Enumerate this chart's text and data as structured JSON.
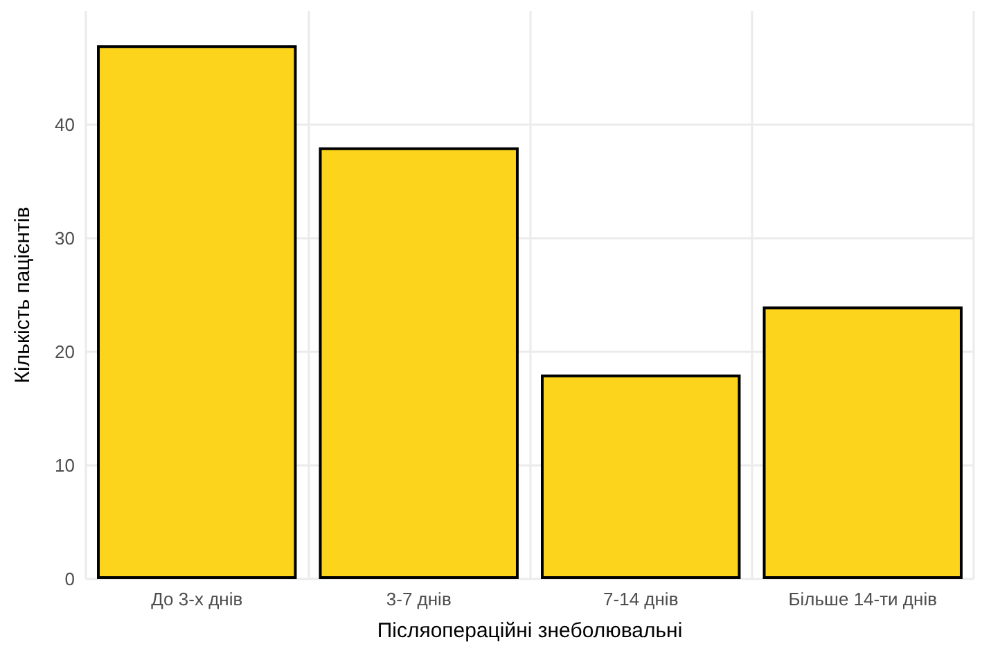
{
  "chart_data": {
    "type": "bar",
    "xlabel": "Післяопераційні знеболювальні",
    "ylabel": "Кількість пацієнтів",
    "categories": [
      "До 3-х днів",
      "3-7 днів",
      "7-14 днів",
      "Більше 14-ти днів"
    ],
    "values": [
      47,
      38,
      18,
      24
    ],
    "color": "#fcd41c",
    "ylim": [
      0,
      50
    ],
    "yticks": [
      0,
      10,
      20,
      30,
      40
    ],
    "grid": true
  }
}
